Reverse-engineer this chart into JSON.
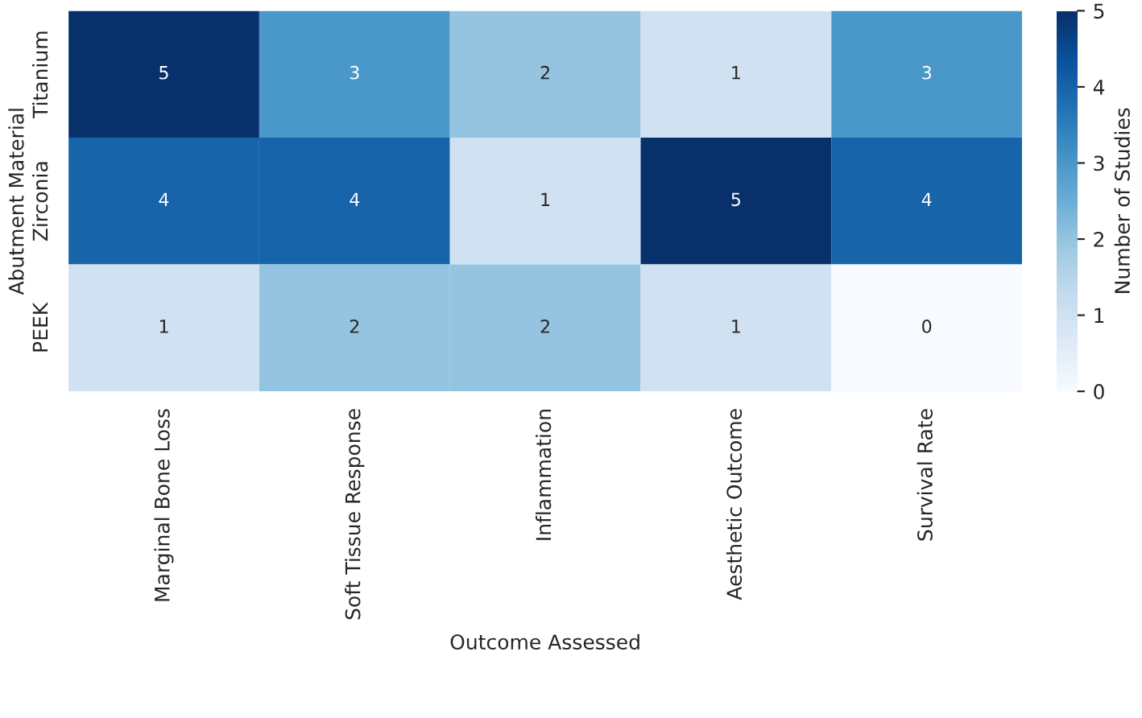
{
  "chart_data": {
    "type": "heatmap",
    "xlabel": "Outcome Assessed",
    "ylabel": "Abutment Material",
    "clabel": "Number of Studies",
    "categories": [
      "Marginal Bone Loss",
      "Soft Tissue Response",
      "Inflammation",
      "Aesthetic Outcome",
      "Survival Rate"
    ],
    "y_categories": [
      "Titanium",
      "Zirconia",
      "PEEK"
    ],
    "cells": [
      [
        5,
        3,
        2,
        1,
        3
      ],
      [
        4,
        4,
        1,
        5,
        4
      ],
      [
        1,
        2,
        2,
        1,
        0
      ]
    ],
    "clim": [
      0,
      5
    ],
    "cticks": [
      0,
      1,
      2,
      3,
      4,
      5
    ],
    "data_labels": true
  }
}
